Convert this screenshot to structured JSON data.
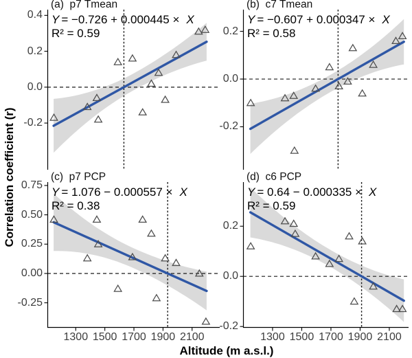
{
  "figure": {
    "y_axis_title": "Correlation coefficient (r)",
    "x_axis_title": "Altitude (m a.s.l.)"
  },
  "colors": {
    "regression_line": "#2F57A5",
    "ci_band": "#DADADA",
    "point_stroke": "#4D4D4D",
    "dashed_line": "#1A1A1A",
    "axis_line": "#000000",
    "tick_label": "#3D3D3D",
    "title_text": "#111111"
  },
  "chart_data": [
    {
      "type": "scatter",
      "id": "a",
      "title": "(a)  p7 Tmean",
      "eq_y": "Y",
      "eq_mid": "= −0.726 + 0.000445 ×",
      "eq_x": "X",
      "r2_text": "R² = 0.59",
      "intercept": -0.726,
      "slope": 0.000445,
      "r2": 0.59,
      "points": [
        [
          1150,
          -0.17
        ],
        [
          1380,
          -0.11
        ],
        [
          1445,
          -0.06
        ],
        [
          1455,
          -0.18
        ],
        [
          1590,
          0.14
        ],
        [
          1690,
          0.16
        ],
        [
          1760,
          -0.14
        ],
        [
          1820,
          0.02
        ],
        [
          1870,
          0.08
        ],
        [
          1915,
          -0.07
        ],
        [
          1990,
          0.18
        ],
        [
          2145,
          0.31
        ],
        [
          2190,
          0.32
        ]
      ],
      "xlim": [
        1105,
        2290
      ],
      "ylim": [
        -0.46,
        0.432
      ],
      "xticks": [
        1300,
        1500,
        1700,
        1900,
        2100
      ],
      "xtick_labels": [
        "1300",
        "1500",
        "1700",
        "1900",
        "2100"
      ],
      "yticks": [
        0.4,
        0.2,
        0.0,
        -0.2
      ],
      "ytick_labels": [
        "0.4",
        "0.2",
        "0.0",
        "-0.2"
      ],
      "hline_y": 0,
      "vline_x": 1631,
      "trend_range": [
        1148,
        2200
      ],
      "band": {
        "left": 0.15,
        "mid": 0.047,
        "right": 0.105,
        "pinch": 1700
      }
    },
    {
      "type": "scatter",
      "id": "b",
      "title": "(b)  c7 Tmean",
      "eq_y": "Y",
      "eq_mid": "= −0.607 + 0.000347 ×",
      "eq_x": "X",
      "r2_text": "R² = 0.58",
      "intercept": -0.607,
      "slope": 0.000347,
      "r2": 0.58,
      "points": [
        [
          1150,
          -0.1
        ],
        [
          1385,
          -0.08
        ],
        [
          1445,
          -0.07
        ],
        [
          1450,
          -0.3
        ],
        [
          1595,
          -0.04
        ],
        [
          1690,
          0.05
        ],
        [
          1755,
          -0.03
        ],
        [
          1815,
          -0.01
        ],
        [
          1850,
          0.13
        ],
        [
          1915,
          -0.06
        ],
        [
          1990,
          0.06
        ],
        [
          2145,
          0.16
        ],
        [
          2190,
          0.18
        ]
      ],
      "xlim": [
        1098,
        2232
      ],
      "ylim": [
        -0.38,
        0.291
      ],
      "xticks": [
        1300,
        1500,
        1700,
        1900,
        2100
      ],
      "xtick_labels": [
        "1300",
        "1500",
        "1700",
        "1900",
        "2100"
      ],
      "yticks": [
        0.2,
        0.0,
        -0.2
      ],
      "ytick_labels": [
        "0.2",
        "0.0",
        "-0.2"
      ],
      "hline_y": 0,
      "vline_x": 1749,
      "trend_range": [
        1148,
        2200
      ],
      "band": {
        "left": 0.105,
        "mid": 0.036,
        "right": 0.095,
        "pinch": 1700
      }
    },
    {
      "type": "scatter",
      "id": "c",
      "title": "(c)  p7 PCP",
      "eq_y": "Y",
      "eq_mid": "= 1.076 − 0.000557 ×",
      "eq_x": "X",
      "r2_text": "R² = 0.38",
      "intercept": 1.076,
      "slope": -0.000557,
      "r2": 0.38,
      "points": [
        [
          1150,
          0.46
        ],
        [
          1380,
          0.13
        ],
        [
          1445,
          0.46
        ],
        [
          1455,
          0.25
        ],
        [
          1590,
          -0.13
        ],
        [
          1690,
          0.14
        ],
        [
          1760,
          0.46
        ],
        [
          1820,
          0.34
        ],
        [
          1855,
          -0.21
        ],
        [
          1915,
          0.13
        ],
        [
          1990,
          0.09
        ],
        [
          2150,
          0.0
        ],
        [
          2195,
          -0.41
        ]
      ],
      "xlim": [
        1105,
        2290
      ],
      "ylim": [
        -0.463,
        0.779
      ],
      "xticks": [
        1300,
        1500,
        1700,
        1900,
        2100
      ],
      "xtick_labels": [
        "1300",
        "1500",
        "1700",
        "1900",
        "2100"
      ],
      "yticks": [
        0.75,
        0.5,
        0.25,
        0.0,
        -0.25
      ],
      "ytick_labels": [
        "0.75",
        "0.50",
        "0.25",
        "0.00",
        "-0.25"
      ],
      "hline_y": 0,
      "vline_x": 1932,
      "trend_range": [
        1148,
        2200
      ],
      "band": {
        "left": 0.245,
        "mid": 0.085,
        "right": 0.165,
        "pinch": 1700
      }
    },
    {
      "type": "scatter",
      "id": "d",
      "title": "(d)  c6 PCP",
      "eq_y": "Y",
      "eq_mid": "= 0.64 − 0.000335 ×",
      "eq_x": "X",
      "r2_text": "R² = 0.59",
      "intercept": 0.64,
      "slope": -0.000335,
      "r2": 0.59,
      "points": [
        [
          1150,
          0.12
        ],
        [
          1385,
          0.22
        ],
        [
          1445,
          0.21
        ],
        [
          1455,
          0.17
        ],
        [
          1595,
          0.08
        ],
        [
          1690,
          0.05
        ],
        [
          1755,
          0.07
        ],
        [
          1825,
          0.16
        ],
        [
          1860,
          -0.1
        ],
        [
          1915,
          0.14
        ],
        [
          1990,
          -0.04
        ],
        [
          2150,
          -0.13
        ],
        [
          2190,
          -0.13
        ]
      ],
      "xlim": [
        1098,
        2232
      ],
      "ylim": [
        -0.205,
        0.376
      ],
      "xticks": [
        1300,
        1500,
        1700,
        1900,
        2100
      ],
      "xtick_labels": [
        "1300",
        "1500",
        "1700",
        "1900",
        "2100"
      ],
      "yticks": [
        0.2,
        0.0,
        -0.2
      ],
      "ytick_labels": [
        "0.2",
        "0.0",
        "-0.2"
      ],
      "hline_y": 0,
      "vline_x": 1910,
      "trend_range": [
        1148,
        2200
      ],
      "band": {
        "left": 0.1,
        "mid": 0.034,
        "right": 0.085,
        "pinch": 1700
      }
    }
  ]
}
